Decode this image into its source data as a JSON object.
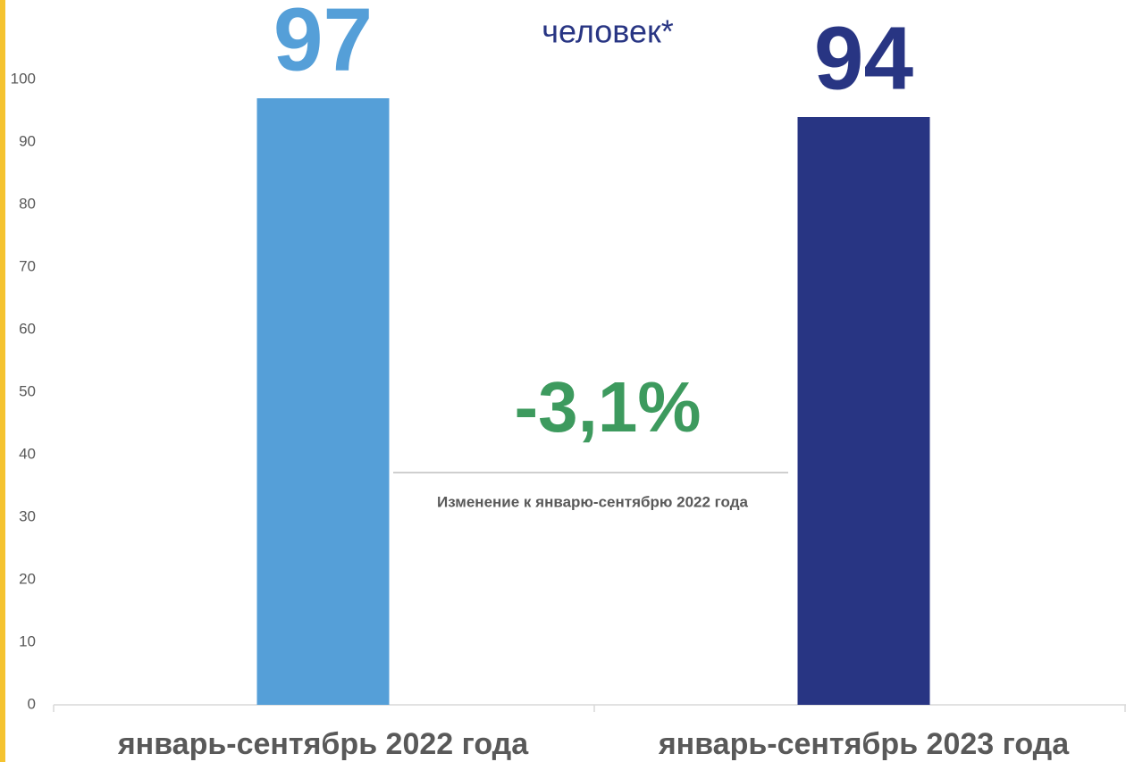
{
  "chart_data": {
    "type": "bar",
    "title": "человек*",
    "categories": [
      "январь-сентябрь 2022 года",
      "январь-сентябрь 2023 года"
    ],
    "values": [
      97,
      94
    ],
    "colors": [
      "#559fd8",
      "#283583"
    ],
    "ylim": [
      0,
      100
    ],
    "yticks": [
      0,
      10,
      20,
      30,
      40,
      50,
      60,
      70,
      80,
      90,
      100
    ],
    "grid": false,
    "annotation": "-3,1%",
    "annotation_label": "Изменение к январю-сентябрю 2022 года"
  }
}
